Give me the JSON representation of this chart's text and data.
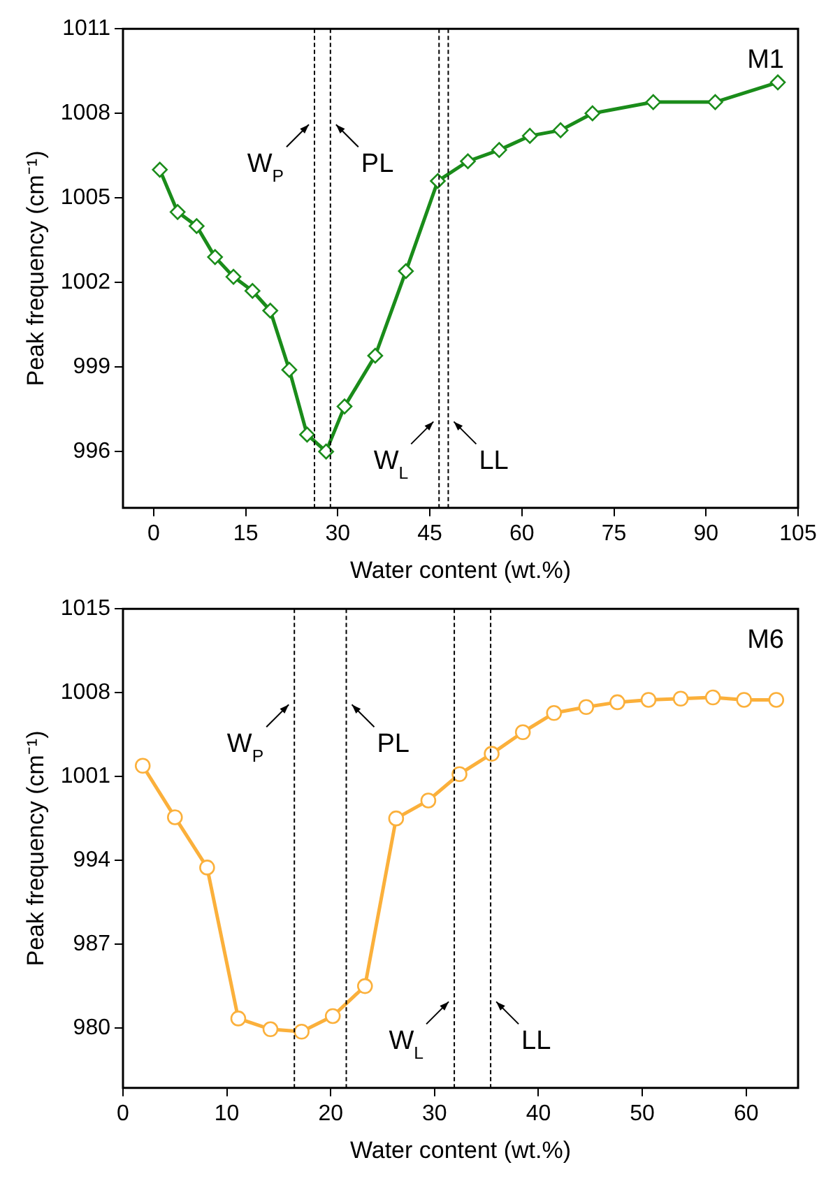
{
  "chart_data": [
    {
      "type": "line",
      "xlabel": "Water content (wt.%)",
      "ylabel": "Peak frequency (cm⁻¹)",
      "annotations": [
        "M1"
      ],
      "marker": "diamond",
      "line_style": "solid",
      "grid": false,
      "legend": false,
      "xlim": [
        -5,
        105
      ],
      "xticks": [
        0,
        15,
        30,
        45,
        60,
        75,
        90,
        105
      ],
      "ylim": [
        994,
        1011
      ],
      "yticks": [
        996,
        999,
        1002,
        1005,
        1008,
        1011
      ],
      "series": [
        {
          "color": "#1a8c1a",
          "x": [
            1.0,
            3.9,
            7.0,
            10.0,
            13.0,
            16.1,
            19.0,
            22.1,
            25.0,
            28.1,
            31.1,
            36.1,
            41.1,
            46.3,
            51.2,
            56.3,
            61.3,
            66.3,
            71.5,
            81.4,
            91.5,
            101.7
          ],
          "values": [
            1006.0,
            1004.5,
            1004.0,
            1002.9,
            1002.2,
            1001.7,
            1001.0,
            998.9,
            996.6,
            996.0,
            997.6,
            999.4,
            1002.4,
            1005.6,
            1006.3,
            1006.7,
            1007.2,
            1007.4,
            1008.0,
            1008.4,
            1008.4,
            1009.1
          ]
        }
      ],
      "ref_lines": [
        {
          "axis": "x",
          "value": 26.2,
          "label": "W$_{P}$",
          "line_style": "dashed",
          "color": "#000000"
        },
        {
          "axis": "x",
          "value": 28.8,
          "label": "PL",
          "line_style": "dashed",
          "color": "#000000"
        },
        {
          "axis": "x",
          "value": 46.5,
          "label": "W$_{L}$",
          "line_style": "dashed",
          "color": "#000000"
        },
        {
          "axis": "x",
          "value": 48.0,
          "label": "LL",
          "line_style": "dashed",
          "color": "#000000"
        }
      ]
    },
    {
      "type": "line",
      "xlabel": "Water content (wt.%)",
      "ylabel": "Peak frequency (cm⁻¹)",
      "annotations": [
        "M6"
      ],
      "marker": "circle",
      "line_style": "solid",
      "grid": false,
      "legend": false,
      "xlim": [
        0,
        65
      ],
      "xticks": [
        0,
        10,
        20,
        30,
        40,
        50,
        60
      ],
      "ylim": [
        975,
        1015
      ],
      "yticks": [
        980,
        987,
        994,
        1001,
        1008,
        1015
      ],
      "series": [
        {
          "color": "#fbb03b",
          "x": [
            1.9,
            5.0,
            8.1,
            11.1,
            14.2,
            17.2,
            20.2,
            23.3,
            26.3,
            29.4,
            32.4,
            35.5,
            38.5,
            41.5,
            44.6,
            47.6,
            50.6,
            53.7,
            56.8,
            59.8,
            62.9
          ],
          "values": [
            1001.9,
            997.6,
            993.4,
            980.8,
            979.9,
            979.7,
            981.0,
            983.5,
            997.5,
            999.0,
            1001.2,
            1002.9,
            1004.7,
            1006.3,
            1006.8,
            1007.2,
            1007.4,
            1007.5,
            1007.6,
            1007.4,
            1007.4
          ]
        }
      ],
      "ref_lines": [
        {
          "axis": "x",
          "value": 16.5,
          "label": "W$_{P}$",
          "line_style": "dashed",
          "color": "#000000"
        },
        {
          "axis": "x",
          "value": 21.5,
          "label": "PL",
          "line_style": "dashed",
          "color": "#000000"
        },
        {
          "axis": "x",
          "value": 31.9,
          "label": "W$_{L}$",
          "line_style": "dashed",
          "color": "#000000"
        },
        {
          "axis": "x",
          "value": 35.4,
          "label": "LL",
          "line_style": "dashed",
          "color": "#000000"
        }
      ]
    }
  ]
}
